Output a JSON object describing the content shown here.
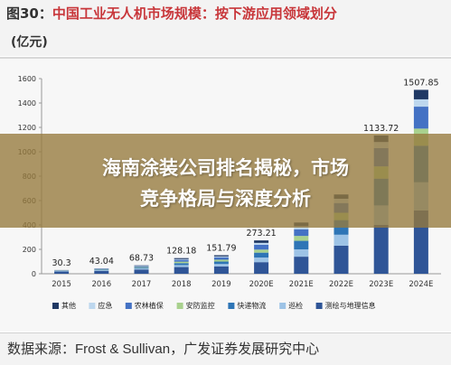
{
  "header": {
    "figure_label": "图30：",
    "title_main": "中国工业无人机市场规模：",
    "title_sub": "按下游应用领域划分",
    "unit": "(亿元)"
  },
  "overlay": {
    "line1": "海南涂装公司排名揭秘，市场",
    "line2": "竞争格局与深度分析"
  },
  "source": {
    "prefix": "数据来源：",
    "org_en": "Frost & Sullivan",
    "suffix": "，广发证券发展研究中心"
  },
  "chart_data": {
    "type": "bar",
    "stacked": true,
    "title": "",
    "xlabel": "",
    "ylabel": "",
    "categories": [
      "2015",
      "2016",
      "2017",
      "2018",
      "2019",
      "2020E",
      "2021E",
      "2022E",
      "2023E",
      "2024E"
    ],
    "totals": [
      "30.3",
      "43.04",
      "68.73",
      "128.18",
      "151.79",
      "273.21",
      "",
      "",
      "1133.72",
      "1507.85"
    ],
    "total_values": [
      30.3,
      43.04,
      68.73,
      128.18,
      151.79,
      273.21,
      420,
      650,
      1133.72,
      1507.85
    ],
    "ylim": [
      0,
      1600
    ],
    "yticks": [
      0,
      200,
      400,
      600,
      800,
      1000,
      1200,
      1400,
      1600
    ],
    "grid": false,
    "legend_position": "bottom",
    "series": [
      {
        "name": "测绘与地理信息",
        "color": "#2f5597",
        "values": [
          18,
          24,
          35,
          55,
          60,
          95,
          140,
          230,
          400,
          520
        ]
      },
      {
        "name": "巡检",
        "color": "#9dc3e6",
        "values": [
          3,
          5,
          8,
          16,
          20,
          38,
          60,
          90,
          160,
          230
        ]
      },
      {
        "name": "快递物流",
        "color": "#2e75b6",
        "values": [
          2,
          4,
          7,
          16,
          20,
          40,
          70,
          120,
          220,
          300
        ]
      },
      {
        "name": "安防监控",
        "color": "#a9d18e",
        "values": [
          2,
          3,
          5,
          12,
          15,
          25,
          40,
          60,
          100,
          140
        ]
      },
      {
        "name": "农林植保",
        "color": "#4472c4",
        "values": [
          3,
          4,
          7,
          15,
          20,
          40,
          55,
          80,
          150,
          180
        ]
      },
      {
        "name": "应急",
        "color": "#bdd7ee",
        "values": [
          1,
          1.5,
          3,
          6,
          7,
          15,
          25,
          35,
          50,
          60
        ]
      },
      {
        "name": "其他",
        "color": "#1f3864",
        "values": [
          1.3,
          1.54,
          3.73,
          8.18,
          9.79,
          20.21,
          30,
          35,
          53.72,
          77.85
        ]
      }
    ]
  }
}
